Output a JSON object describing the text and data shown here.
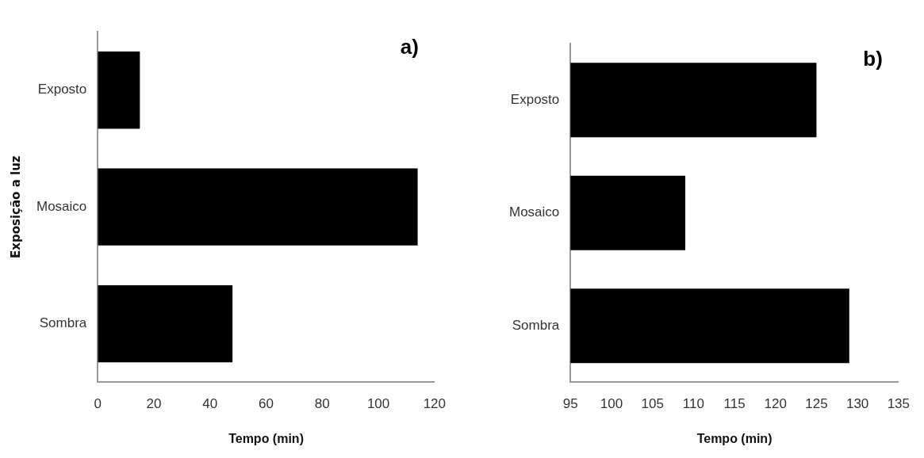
{
  "chart_data": [
    {
      "type": "bar",
      "orientation": "horizontal",
      "title": "a)",
      "xlabel": "Tempo (min)",
      "ylabel": "Exposição a luz",
      "categories": [
        "Exposto",
        "Mosaico",
        "Sombra"
      ],
      "values": [
        15,
        114,
        48
      ],
      "color": "#000000",
      "xlim": [
        0,
        120
      ],
      "xticks": [
        0,
        20,
        40,
        60,
        80,
        100,
        120
      ],
      "grid": false
    },
    {
      "type": "bar",
      "orientation": "horizontal",
      "title": "b)",
      "xlabel": "Tempo (min)",
      "categories": [
        "Exposto",
        "Mosaico",
        "Sombra"
      ],
      "values": [
        125,
        109,
        129
      ],
      "color": "#000000",
      "xlim": [
        95,
        135
      ],
      "xticks": [
        95,
        100,
        105,
        110,
        115,
        120,
        125,
        130,
        135
      ],
      "grid": false
    }
  ]
}
